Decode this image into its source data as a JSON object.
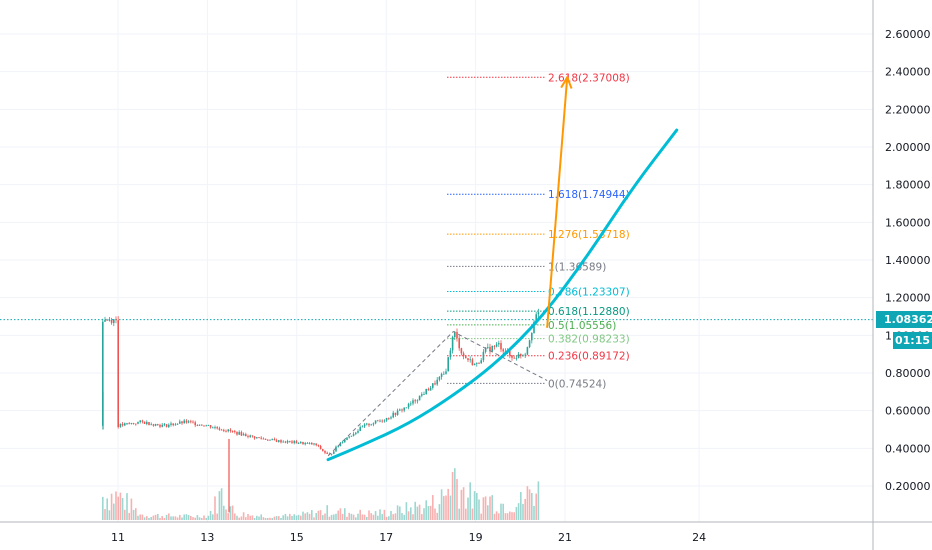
{
  "chart_data": {
    "type": "candlestick",
    "y_axis": {
      "min": 0.06,
      "max": 2.78,
      "ticks": [
        "0.20000",
        "0.40000",
        "0.60000",
        "0.80000",
        "1.00000",
        "1.20000",
        "1.40000",
        "1.60000",
        "1.80000",
        "2.00000",
        "2.20000",
        "2.40000",
        "2.60000"
      ],
      "position": "right"
    },
    "x_axis": {
      "ticks": [
        "11",
        "13",
        "15",
        "17",
        "19",
        "21",
        "24"
      ],
      "tick_days": [
        11,
        13,
        15,
        17,
        19,
        21,
        24
      ]
    },
    "last_price": "1.08362",
    "countdown": "01:15",
    "price_path": [
      [
        10.98,
        0.52
      ],
      [
        11.5,
        0.54
      ],
      [
        12.0,
        0.52
      ],
      [
        12.5,
        0.54
      ],
      [
        13.0,
        0.52
      ],
      [
        13.5,
        0.49
      ],
      [
        14.0,
        0.46
      ],
      [
        14.5,
        0.44
      ],
      [
        15.0,
        0.43
      ],
      [
        15.4,
        0.42
      ],
      [
        15.7,
        0.36
      ],
      [
        16.0,
        0.44
      ],
      [
        16.5,
        0.52
      ],
      [
        17.0,
        0.56
      ],
      [
        17.5,
        0.63
      ],
      [
        18.0,
        0.73
      ],
      [
        18.3,
        0.8
      ],
      [
        18.5,
        1.02
      ],
      [
        18.7,
        0.89
      ],
      [
        19.0,
        0.84
      ],
      [
        19.2,
        0.92
      ],
      [
        19.5,
        0.95
      ],
      [
        19.8,
        0.88
      ],
      [
        20.1,
        0.91
      ],
      [
        20.3,
        1.08
      ],
      [
        20.45,
        1.14
      ],
      [
        20.6,
        1.08362
      ]
    ],
    "volume": [
      [
        11.0,
        0.45
      ],
      [
        11.5,
        0.1
      ],
      [
        12.0,
        0.08
      ],
      [
        12.5,
        0.07
      ],
      [
        13.0,
        0.08
      ],
      [
        13.3,
        0.5
      ],
      [
        13.6,
        0.12
      ],
      [
        14.0,
        0.09
      ],
      [
        14.5,
        0.07
      ],
      [
        15.0,
        0.08
      ],
      [
        15.7,
        0.18
      ],
      [
        16.0,
        0.15
      ],
      [
        16.5,
        0.12
      ],
      [
        17.0,
        0.14
      ],
      [
        17.5,
        0.22
      ],
      [
        18.0,
        0.3
      ],
      [
        18.3,
        0.45
      ],
      [
        18.5,
        0.92
      ],
      [
        18.7,
        0.55
      ],
      [
        19.0,
        0.35
      ],
      [
        19.3,
        0.4
      ],
      [
        19.6,
        0.3
      ],
      [
        20.0,
        0.35
      ],
      [
        20.3,
        0.6
      ],
      [
        20.5,
        0.45
      ]
    ],
    "fibonacci": {
      "levels": [
        {
          "label": "0(0.74524)",
          "value": 0.74524,
          "color": "#787b86"
        },
        {
          "label": "0.236(0.89172)",
          "value": 0.89172,
          "color": "#f23645"
        },
        {
          "label": "0.382(0.98233)",
          "value": 0.98233,
          "color": "#81c784"
        },
        {
          "label": "0.5(1.05556)",
          "value": 1.05556,
          "color": "#4caf50"
        },
        {
          "label": "0.618(1.12880)",
          "value": 1.1288,
          "color": "#089981"
        },
        {
          "label": "0.786(1.23307)",
          "value": 1.23307,
          "color": "#00bcd4"
        },
        {
          "label": "1(1.36589)",
          "value": 1.36589,
          "color": "#787b86"
        },
        {
          "label": "1.276(1.53718)",
          "value": 1.53718,
          "color": "#ff9800"
        },
        {
          "label": "1.618(1.74944)",
          "value": 1.74944,
          "color": "#2962ff"
        },
        {
          "label": "2.618(2.37008)",
          "value": 2.37008,
          "color": "#f23645"
        }
      ],
      "extension_points": [
        [
          15.7,
          0.36
        ],
        [
          18.5,
          1.02
        ],
        [
          20.6,
          0.76
        ]
      ]
    },
    "trend_curve": [
      [
        15.7,
        0.34
      ],
      [
        16.5,
        0.42
      ],
      [
        17.5,
        0.53
      ],
      [
        18.5,
        0.68
      ],
      [
        19.5,
        0.86
      ],
      [
        20.5,
        1.1
      ],
      [
        21.5,
        1.42
      ],
      [
        22.5,
        1.78
      ],
      [
        23.5,
        2.09
      ]
    ],
    "projection_arrow": [
      [
        20.6,
        1.04
      ],
      [
        21.05,
        2.37
      ]
    ]
  }
}
